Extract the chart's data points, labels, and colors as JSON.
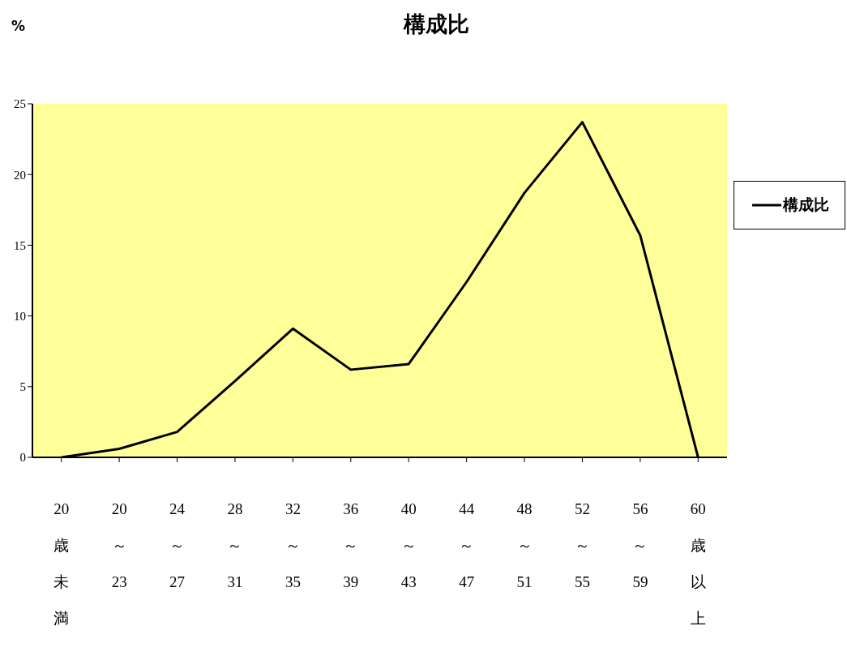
{
  "chart_data": {
    "type": "line",
    "title": "構成比",
    "ylabel": "%",
    "categories": [
      "20歳未満",
      "20～23",
      "24～27",
      "28～31",
      "32～35",
      "36～39",
      "40～43",
      "44～47",
      "48～51",
      "52～55",
      "56～59",
      "60歳以上"
    ],
    "series": [
      {
        "name": "構成比",
        "color": "#000000",
        "values": [
          0,
          0.6,
          1.8,
          5.4,
          9.1,
          6.2,
          6.6,
          12.4,
          18.7,
          23.7,
          15.7,
          0
        ]
      }
    ],
    "ylim": [
      0,
      25
    ],
    "yticks": [
      0,
      5,
      10,
      15,
      20,
      25
    ],
    "grid": false,
    "legend": "right",
    "marker": "none",
    "line_style": "solid"
  }
}
